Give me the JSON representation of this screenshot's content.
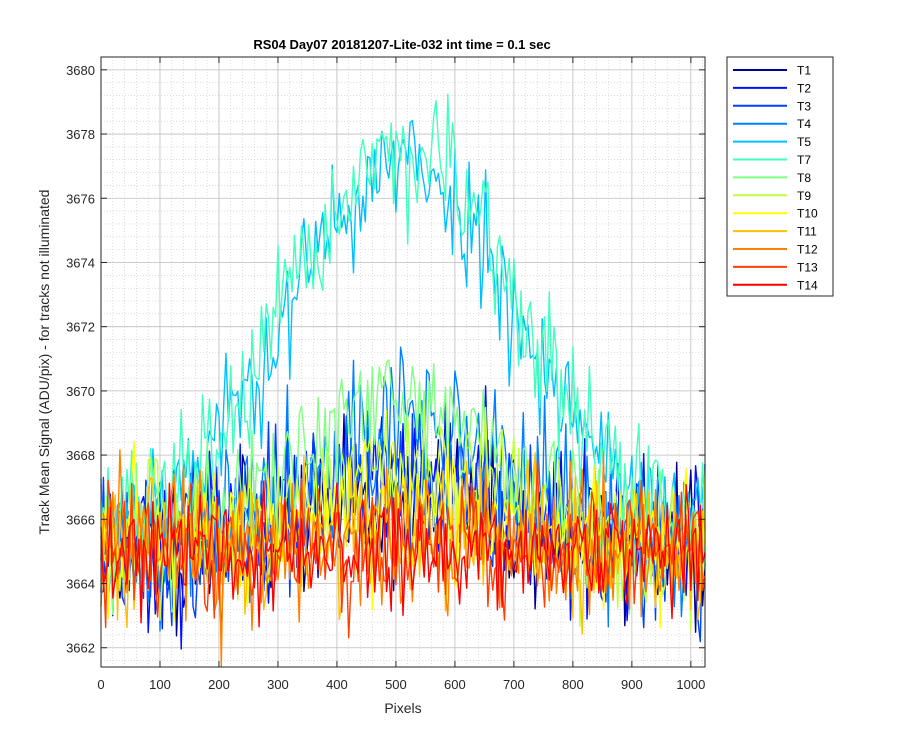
{
  "chart_data": {
    "type": "line",
    "title": "RS04 Day07 20181207-Lite-032 int time = 0.1 sec",
    "xlabel": "Pixels",
    "ylabel": "Track Mean Signal (ADU/pix) - for tracks not illuminated",
    "xlim": [
      0,
      1024
    ],
    "ylim": [
      3661.4,
      3680.4
    ],
    "x_ticks": [
      0,
      100,
      200,
      300,
      400,
      500,
      600,
      700,
      800,
      900,
      1000
    ],
    "y_ticks": [
      3662,
      3664,
      3666,
      3668,
      3670,
      3672,
      3674,
      3676,
      3678,
      3680
    ],
    "grid": true,
    "minor_grid": true,
    "legend_position": "outside-right",
    "x_resolution": 4,
    "series": [
      {
        "name": "T1",
        "color": "#00008f",
        "profile": {
          "base": 3665.0,
          "peak": 1.5,
          "center": 512,
          "width": 250,
          "noise": 1.1,
          "seed": 11
        }
      },
      {
        "name": "T2",
        "color": "#0010ff",
        "profile": {
          "base": 3665.0,
          "peak": 2.0,
          "center": 512,
          "width": 250,
          "noise": 1.2,
          "seed": 23
        }
      },
      {
        "name": "T3",
        "color": "#0040ff",
        "profile": {
          "base": 3665.0,
          "peak": 2.5,
          "center": 512,
          "width": 255,
          "noise": 1.2,
          "seed": 37
        }
      },
      {
        "name": "T4",
        "color": "#0080ff",
        "profile": {
          "base": 3665.0,
          "peak": 4.0,
          "center": 512,
          "width": 260,
          "noise": 1.2,
          "seed": 41
        }
      },
      {
        "name": "T5",
        "color": "#00c0ff",
        "profile": {
          "base": 3665.5,
          "peak": 11.5,
          "center": 512,
          "width": 275,
          "noise": 1.0,
          "seed": 53
        }
      },
      {
        "name": "T7",
        "color": "#40ffbf",
        "profile": {
          "base": 3665.5,
          "peak": 12.0,
          "center": 512,
          "width": 270,
          "noise": 1.0,
          "seed": 67
        }
      },
      {
        "name": "T8",
        "color": "#80ff80",
        "profile": {
          "base": 3665.0,
          "peak": 4.5,
          "center": 512,
          "width": 260,
          "noise": 1.1,
          "seed": 71
        }
      },
      {
        "name": "T9",
        "color": "#bfff40",
        "profile": {
          "base": 3665.0,
          "peak": 2.5,
          "center": 512,
          "width": 255,
          "noise": 1.1,
          "seed": 83
        }
      },
      {
        "name": "T10",
        "color": "#ffff00",
        "profile": {
          "base": 3665.0,
          "peak": 1.5,
          "center": 512,
          "width": 250,
          "noise": 1.1,
          "seed": 97
        }
      },
      {
        "name": "T11",
        "color": "#ffbf00",
        "profile": {
          "base": 3665.0,
          "peak": 0.6,
          "center": 512,
          "width": 250,
          "noise": 1.1,
          "seed": 101
        }
      },
      {
        "name": "T12",
        "color": "#ff8000",
        "profile": {
          "base": 3665.0,
          "peak": 0.3,
          "center": 512,
          "width": 250,
          "noise": 1.1,
          "seed": 113
        }
      },
      {
        "name": "T13",
        "color": "#ff4000",
        "profile": {
          "base": 3665.0,
          "peak": 0.0,
          "center": 512,
          "width": 250,
          "noise": 1.0,
          "seed": 127
        }
      },
      {
        "name": "T14",
        "color": "#ff0000",
        "profile": {
          "base": 3665.0,
          "peak": 0.0,
          "center": 512,
          "width": 250,
          "noise": 0.9,
          "seed": 131
        }
      }
    ]
  }
}
